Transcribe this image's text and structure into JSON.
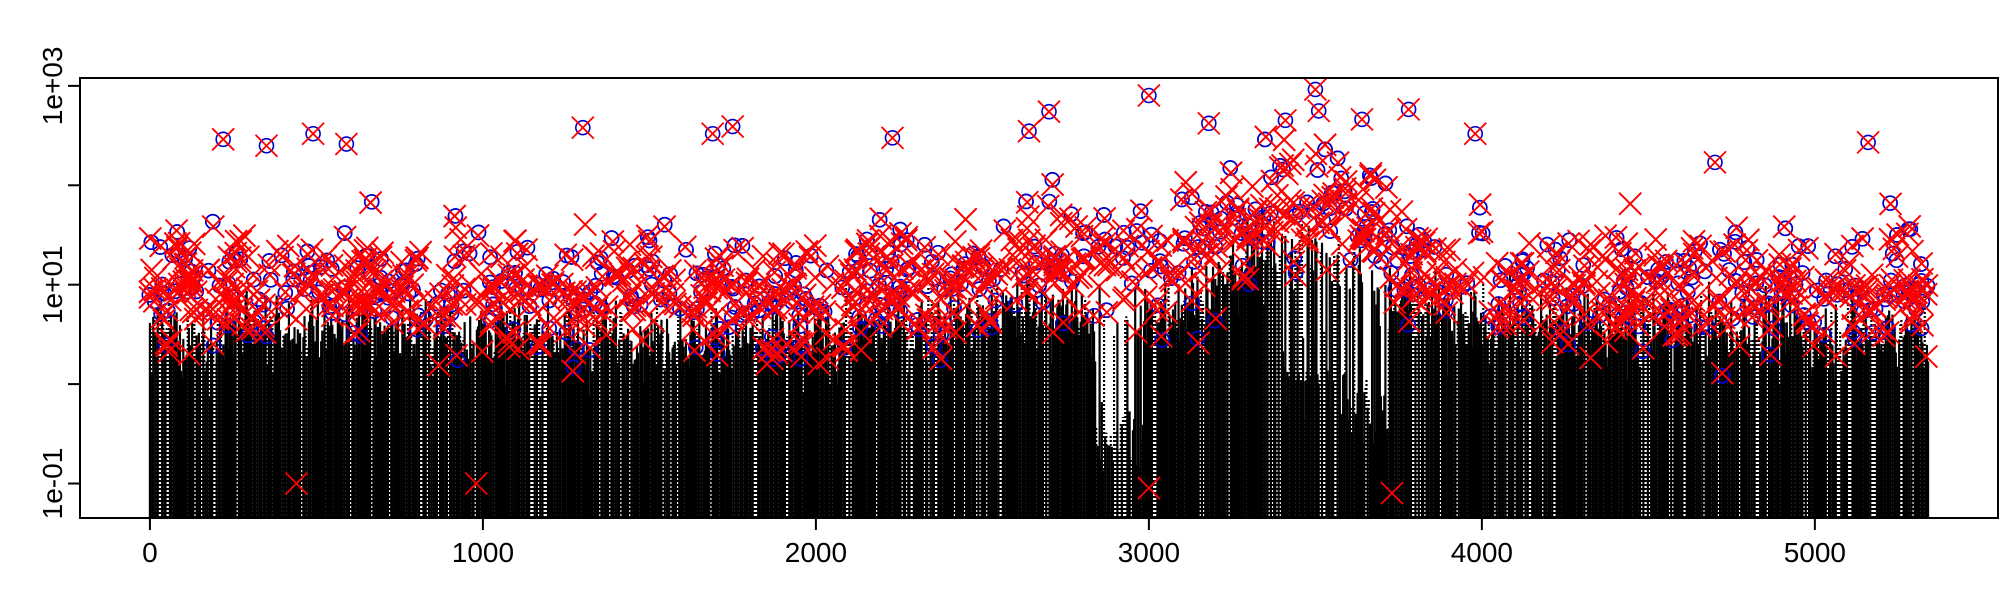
{
  "chart_data": {
    "type": "scatter",
    "title": "",
    "xlabel": "",
    "ylabel": "",
    "x_range": [
      0,
      5340
    ],
    "xlim": [
      -210,
      5550
    ],
    "ylim": [
      0.045,
      1200
    ],
    "y_scale": "log",
    "grid": false,
    "legend": "none",
    "x_ticks": [
      {
        "value": 0,
        "label": "0"
      },
      {
        "value": 1000,
        "label": "1000"
      },
      {
        "value": 2000,
        "label": "2000"
      },
      {
        "value": 3000,
        "label": "3000"
      },
      {
        "value": 4000,
        "label": "4000"
      },
      {
        "value": 5000,
        "label": "5000"
      }
    ],
    "y_ticks": [
      {
        "value": 0.1,
        "label": "1e-01"
      },
      {
        "value": 10,
        "label": "1e+01"
      },
      {
        "value": 1000,
        "label": "1e+03"
      }
    ],
    "y_minor_ticks": [
      1,
      100
    ],
    "series": [
      {
        "marker": "dotted-vertical-line",
        "color": "#000000"
      },
      {
        "marker": "circle",
        "color": "#0000cc"
      },
      {
        "marker": "x",
        "color": "#ff0000"
      }
    ],
    "profile": [
      {
        "x": 0,
        "y": 8
      },
      {
        "x": 300,
        "y": 9
      },
      {
        "x": 600,
        "y": 10
      },
      {
        "x": 900,
        "y": 9
      },
      {
        "x": 1200,
        "y": 8
      },
      {
        "x": 1500,
        "y": 9
      },
      {
        "x": 1800,
        "y": 8
      },
      {
        "x": 2000,
        "y": 7
      },
      {
        "x": 2200,
        "y": 10
      },
      {
        "x": 2500,
        "y": 12
      },
      {
        "x": 2650,
        "y": 18
      },
      {
        "x": 2800,
        "y": 12
      },
      {
        "x": 3000,
        "y": 15
      },
      {
        "x": 3200,
        "y": 25
      },
      {
        "x": 3350,
        "y": 60
      },
      {
        "x": 3500,
        "y": 70
      },
      {
        "x": 3650,
        "y": 35
      },
      {
        "x": 3800,
        "y": 15
      },
      {
        "x": 4000,
        "y": 12
      },
      {
        "x": 4300,
        "y": 11
      },
      {
        "x": 4600,
        "y": 10
      },
      {
        "x": 5000,
        "y": 9
      },
      {
        "x": 5340,
        "y": 9
      }
    ],
    "outliers": [
      {
        "x": 220,
        "y": 290
      },
      {
        "x": 350,
        "y": 250
      },
      {
        "x": 490,
        "y": 330
      },
      {
        "x": 590,
        "y": 260
      },
      {
        "x": 1300,
        "y": 380
      },
      {
        "x": 1690,
        "y": 330
      },
      {
        "x": 1750,
        "y": 390
      },
      {
        "x": 2230,
        "y": 300
      },
      {
        "x": 2640,
        "y": 350
      },
      {
        "x": 2700,
        "y": 550
      },
      {
        "x": 3000,
        "y": 800
      },
      {
        "x": 3180,
        "y": 420
      },
      {
        "x": 3410,
        "y": 450
      },
      {
        "x": 3500,
        "y": 920
      },
      {
        "x": 3510,
        "y": 560
      },
      {
        "x": 3640,
        "y": 460
      },
      {
        "x": 3780,
        "y": 580
      },
      {
        "x": 3980,
        "y": 330
      },
      {
        "x": 4700,
        "y": 170
      },
      {
        "x": 5160,
        "y": 270
      }
    ],
    "low_points": [
      {
        "x": 440,
        "y": 0.1
      },
      {
        "x": 980,
        "y": 0.1
      },
      {
        "x": 3000,
        "y": 0.09
      },
      {
        "x": 3730,
        "y": 0.08
      }
    ]
  }
}
